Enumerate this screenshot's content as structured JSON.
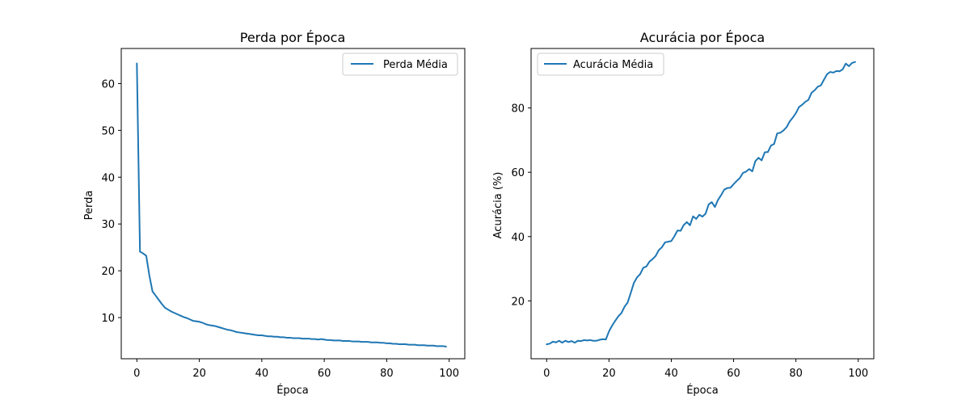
{
  "chart_data": [
    {
      "type": "line",
      "title": "Perda por Época",
      "xlabel": "Época",
      "ylabel": "Perda",
      "xlim": [
        -5,
        105
      ],
      "ylim": [
        1.2,
        67.5
      ],
      "xticks": [
        0,
        20,
        40,
        60,
        80,
        100
      ],
      "yticks": [
        10,
        20,
        30,
        40,
        50,
        60
      ],
      "grid": false,
      "legend_position": "top-right",
      "series": [
        {
          "name": "Perda Média",
          "color": "#1f77b4",
          "x": [
            0,
            1,
            2,
            3,
            4,
            5,
            6,
            7,
            8,
            9,
            10,
            11,
            12,
            13,
            14,
            15,
            16,
            17,
            18,
            19,
            20,
            21,
            22,
            23,
            24,
            25,
            26,
            27,
            28,
            29,
            30,
            31,
            32,
            33,
            34,
            35,
            36,
            37,
            38,
            39,
            40,
            41,
            42,
            43,
            44,
            45,
            46,
            47,
            48,
            49,
            50,
            51,
            52,
            53,
            54,
            55,
            56,
            57,
            58,
            59,
            60,
            61,
            62,
            63,
            64,
            65,
            66,
            67,
            68,
            69,
            70,
            71,
            72,
            73,
            74,
            75,
            76,
            77,
            78,
            79,
            80,
            81,
            82,
            83,
            84,
            85,
            86,
            87,
            88,
            89,
            90,
            91,
            92,
            93,
            94,
            95,
            96,
            97,
            98,
            99
          ],
          "values": [
            64.3,
            24.1,
            23.7,
            23.2,
            19.0,
            15.6,
            14.7,
            13.8,
            12.9,
            12.1,
            11.7,
            11.3,
            11.0,
            10.7,
            10.4,
            10.1,
            9.9,
            9.6,
            9.3,
            9.2,
            9.1,
            8.9,
            8.6,
            8.4,
            8.3,
            8.2,
            8.0,
            7.8,
            7.6,
            7.4,
            7.3,
            7.1,
            6.9,
            6.8,
            6.7,
            6.6,
            6.5,
            6.4,
            6.3,
            6.2,
            6.2,
            6.1,
            6.0,
            6.0,
            5.9,
            5.9,
            5.8,
            5.8,
            5.7,
            5.7,
            5.6,
            5.6,
            5.6,
            5.5,
            5.5,
            5.5,
            5.4,
            5.4,
            5.3,
            5.4,
            5.3,
            5.2,
            5.2,
            5.1,
            5.1,
            5.1,
            5.0,
            5.0,
            5.0,
            4.9,
            4.9,
            4.9,
            4.8,
            4.8,
            4.8,
            4.7,
            4.7,
            4.7,
            4.6,
            4.6,
            4.5,
            4.5,
            4.4,
            4.4,
            4.3,
            4.3,
            4.3,
            4.2,
            4.2,
            4.2,
            4.1,
            4.1,
            4.1,
            4.0,
            4.0,
            4.0,
            3.9,
            3.9,
            3.9,
            3.8
          ]
        }
      ]
    },
    {
      "type": "line",
      "title": "Acurácia por Época",
      "xlabel": "Época",
      "ylabel": "Acurácia (%)",
      "xlim": [
        -5,
        105
      ],
      "ylim": [
        2,
        98.5
      ],
      "xticks": [
        0,
        20,
        40,
        60,
        80,
        100
      ],
      "yticks": [
        20,
        40,
        60,
        80
      ],
      "grid": false,
      "legend_position": "top-left",
      "series": [
        {
          "name": "Acurácia Média",
          "color": "#1f77b4",
          "x": [
            0,
            1,
            2,
            3,
            4,
            5,
            6,
            7,
            8,
            9,
            10,
            11,
            12,
            13,
            14,
            15,
            16,
            17,
            18,
            19,
            20,
            21,
            22,
            23,
            24,
            25,
            26,
            27,
            28,
            29,
            30,
            31,
            32,
            33,
            34,
            35,
            36,
            37,
            38,
            39,
            40,
            41,
            42,
            43,
            44,
            45,
            46,
            47,
            48,
            49,
            50,
            51,
            52,
            53,
            54,
            55,
            56,
            57,
            58,
            59,
            60,
            61,
            62,
            63,
            64,
            65,
            66,
            67,
            68,
            69,
            70,
            71,
            72,
            73,
            74,
            75,
            76,
            77,
            78,
            79,
            80,
            81,
            82,
            83,
            84,
            85,
            86,
            87,
            88,
            89,
            90,
            91,
            92,
            93,
            94,
            95,
            96,
            97,
            98,
            99
          ],
          "values": [
            6.5,
            6.7,
            7.3,
            7.1,
            7.6,
            7.0,
            7.6,
            7.2,
            7.5,
            7.0,
            7.6,
            7.5,
            7.8,
            7.7,
            7.8,
            7.6,
            7.6,
            7.9,
            8.1,
            8.0,
            10.5,
            12.3,
            13.8,
            15.2,
            16.2,
            18.2,
            19.5,
            22.5,
            25.6,
            27.3,
            28.3,
            30.3,
            30.7,
            32.2,
            33.0,
            34.0,
            35.8,
            36.7,
            38.2,
            38.4,
            38.6,
            40.1,
            41.9,
            41.8,
            43.6,
            44.5,
            43.5,
            46.3,
            45.5,
            46.8,
            46.2,
            47.1,
            50.0,
            50.7,
            49.2,
            51.4,
            52.9,
            54.6,
            55.1,
            55.2,
            56.3,
            57.3,
            58.2,
            59.8,
            60.2,
            61.0,
            60.3,
            63.5,
            64.5,
            63.7,
            66.2,
            66.3,
            68.3,
            68.8,
            72.1,
            72.3,
            73.0,
            74.0,
            75.8,
            77.0,
            78.4,
            80.3,
            81.0,
            81.9,
            82.5,
            84.7,
            85.5,
            86.6,
            87.0,
            88.8,
            90.5,
            91.2,
            91.0,
            91.5,
            91.4,
            92.0,
            93.8,
            93.0,
            94.0,
            94.3
          ]
        }
      ]
    }
  ]
}
